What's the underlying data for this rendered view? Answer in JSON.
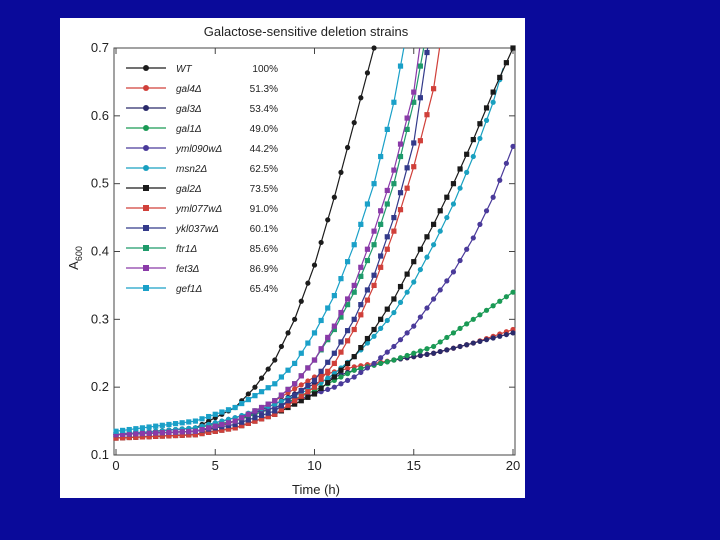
{
  "chart_data": {
    "type": "line",
    "title": "Galactose-sensitive deletion strains",
    "xlabel": "Time (h)",
    "ylabel": "A600",
    "ylabel_main": "A",
    "ylabel_sub": "600",
    "xlim": [
      0,
      20
    ],
    "ylim": [
      0.1,
      0.7
    ],
    "xticks": [
      0,
      5,
      10,
      15,
      20
    ],
    "yticks": [
      0.1,
      0.2,
      0.3,
      0.4,
      0.5,
      0.6,
      0.7
    ],
    "legend_position": "top-left",
    "series": [
      {
        "name": "WT",
        "percent": "100%",
        "color": "#1c1c1c",
        "marker": "circle",
        "x": [
          0,
          4,
          6,
          7,
          8,
          9,
          10,
          11,
          12,
          13
        ],
        "y": [
          0.13,
          0.14,
          0.17,
          0.2,
          0.24,
          0.3,
          0.38,
          0.48,
          0.59,
          0.7
        ]
      },
      {
        "name": "gal4Δ",
        "percent": "51.3%",
        "color": "#d0403a",
        "marker": "circle",
        "x": [
          0,
          4,
          6,
          8,
          10,
          12,
          14,
          16,
          18,
          20
        ],
        "y": [
          0.125,
          0.13,
          0.15,
          0.18,
          0.215,
          0.23,
          0.24,
          0.25,
          0.265,
          0.285
        ]
      },
      {
        "name": "gal3Δ",
        "percent": "53.4%",
        "color": "#2a2a6a",
        "marker": "circle",
        "x": [
          0,
          4,
          6,
          8,
          10,
          12,
          14,
          16,
          18,
          20
        ],
        "y": [
          0.13,
          0.135,
          0.15,
          0.175,
          0.205,
          0.225,
          0.24,
          0.25,
          0.265,
          0.28
        ]
      },
      {
        "name": "gal1Δ",
        "percent": "49.0%",
        "color": "#1a9a55",
        "marker": "circle",
        "x": [
          0,
          4,
          6,
          8,
          10,
          12,
          14,
          16,
          17,
          18,
          19,
          20
        ],
        "y": [
          0.13,
          0.14,
          0.15,
          0.17,
          0.195,
          0.225,
          0.24,
          0.26,
          0.28,
          0.3,
          0.32,
          0.34
        ]
      },
      {
        "name": "yml090wΔ",
        "percent": "44.2%",
        "color": "#4a3a9a",
        "marker": "circle",
        "x": [
          0,
          4,
          6,
          8,
          10,
          11,
          12,
          13,
          14,
          15,
          16,
          17,
          18,
          19,
          20
        ],
        "y": [
          0.13,
          0.14,
          0.155,
          0.17,
          0.19,
          0.2,
          0.215,
          0.235,
          0.26,
          0.29,
          0.33,
          0.37,
          0.42,
          0.48,
          0.555
        ]
      },
      {
        "name": "msn2Δ",
        "percent": "62.5%",
        "color": "#19a0c0",
        "marker": "circle",
        "x": [
          0,
          4,
          6,
          8,
          10,
          11,
          12,
          13,
          14,
          15,
          16,
          17,
          18,
          19,
          19.5
        ],
        "y": [
          0.13,
          0.14,
          0.155,
          0.175,
          0.2,
          0.22,
          0.245,
          0.275,
          0.31,
          0.355,
          0.41,
          0.47,
          0.54,
          0.62,
          0.67
        ]
      },
      {
        "name": "gal2Δ",
        "percent": "73.5%",
        "color": "#1a1a1a",
        "marker": "square",
        "x": [
          0,
          4,
          6,
          8,
          10,
          11,
          12,
          13,
          14,
          15,
          16,
          17,
          18,
          19,
          20
        ],
        "y": [
          0.125,
          0.13,
          0.14,
          0.16,
          0.19,
          0.215,
          0.245,
          0.285,
          0.33,
          0.385,
          0.44,
          0.5,
          0.565,
          0.635,
          0.7
        ]
      },
      {
        "name": "yml077wΔ",
        "percent": "91.0%",
        "color": "#d0403a",
        "marker": "square",
        "x": [
          0,
          4,
          6,
          8,
          10,
          11,
          12,
          13,
          14,
          15,
          16,
          16.3
        ],
        "y": [
          0.125,
          0.13,
          0.14,
          0.16,
          0.2,
          0.235,
          0.285,
          0.35,
          0.43,
          0.525,
          0.64,
          0.7
        ]
      },
      {
        "name": "ykl037wΔ",
        "percent": "60.1%",
        "color": "#333a8a",
        "marker": "square",
        "x": [
          0,
          4,
          6,
          8,
          10,
          11,
          12,
          13,
          14,
          15,
          15.7
        ],
        "y": [
          0.13,
          0.135,
          0.145,
          0.165,
          0.21,
          0.25,
          0.3,
          0.365,
          0.45,
          0.56,
          0.7
        ]
      },
      {
        "name": "ftr1Δ",
        "percent": "85.6%",
        "color": "#1e9a6a",
        "marker": "square",
        "x": [
          0,
          4,
          6,
          8,
          9,
          10,
          11,
          12,
          13,
          14,
          15,
          15.5
        ],
        "y": [
          0.13,
          0.135,
          0.15,
          0.18,
          0.205,
          0.24,
          0.285,
          0.34,
          0.41,
          0.5,
          0.62,
          0.7
        ]
      },
      {
        "name": "fet3Δ",
        "percent": "86.9%",
        "color": "#8a3aa8",
        "marker": "square",
        "x": [
          0,
          4,
          6,
          8,
          9,
          10,
          11,
          12,
          13,
          14,
          15,
          15.3
        ],
        "y": [
          0.13,
          0.135,
          0.15,
          0.18,
          0.205,
          0.24,
          0.29,
          0.35,
          0.43,
          0.52,
          0.635,
          0.7
        ]
      },
      {
        "name": "gef1Δ",
        "percent": "65.4%",
        "color": "#1aa0c8",
        "marker": "square",
        "x": [
          0,
          4,
          6,
          8,
          9,
          10,
          11,
          12,
          13,
          14,
          14.5
        ],
        "y": [
          0.135,
          0.15,
          0.17,
          0.205,
          0.235,
          0.28,
          0.335,
          0.41,
          0.5,
          0.62,
          0.7
        ]
      }
    ]
  }
}
